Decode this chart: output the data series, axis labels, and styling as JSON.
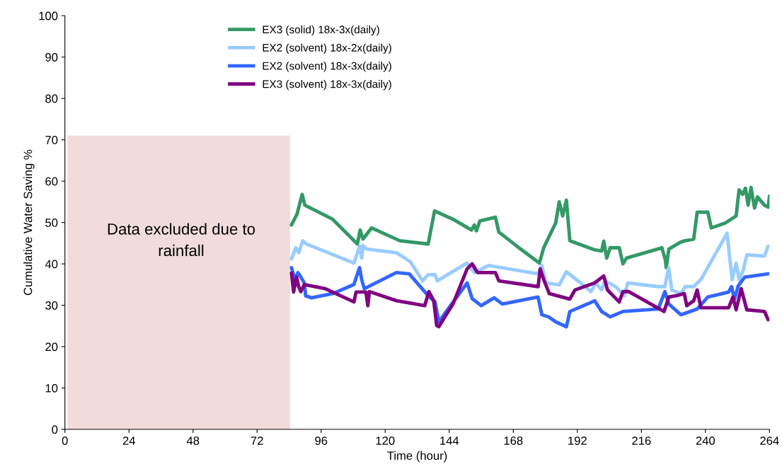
{
  "chart_data": {
    "type": "line",
    "xlabel": "Time (hour)",
    "ylabel": "Cumulative Water Saving %",
    "xlim": [
      0,
      264
    ],
    "xticks": [
      0,
      24,
      48,
      72,
      96,
      120,
      144,
      168,
      192,
      216,
      240,
      264
    ],
    "ylim": [
      0,
      100
    ],
    "yticks": [
      0,
      10,
      20,
      30,
      40,
      50,
      60,
      70,
      80,
      90,
      100
    ],
    "grid": false,
    "legend": "top",
    "marker": "none",
    "line_style": "solid",
    "annotations": [
      "Data excluded due to\nrainfall"
    ],
    "series": [
      {
        "type": "area",
        "color": "#f2dcdb",
        "x": [
          1,
          84.4
        ],
        "values": [
          71,
          71
        ]
      },
      {
        "name": "EX3 (solid) 18x-3x(daily)",
        "color": "#339966",
        "x": [
          84.9,
          87.0,
          88.9,
          89.9,
          100.3,
          109.6,
          110.6,
          111.7,
          114.9,
          125.5,
          136.1,
          138.5,
          145.4,
          152.3,
          153.4,
          154.2,
          155.5,
          161.3,
          162.6,
          169.3,
          177.8,
          179.4,
          182.0,
          183.9,
          185.2,
          186.5,
          187.9,
          189.2,
          198.5,
          201.1,
          201.9,
          203.0,
          204.3,
          207.7,
          209.1,
          210.4,
          223.7,
          225.0,
          225.3,
          226.3,
          230.8,
          232.4,
          235.6,
          236.9,
          240.9,
          242.2,
          247.5,
          251.5,
          252.6,
          253.9,
          255.0,
          256.0,
          257.1,
          258.4,
          259.5,
          262.1,
          263.5,
          264
        ],
        "values": [
          49.4,
          52.1,
          56.8,
          54.2,
          50.8,
          44.8,
          48.2,
          46.0,
          48.7,
          45.6,
          44.8,
          52.8,
          50.8,
          48.2,
          49.4,
          48.0,
          50.4,
          51.3,
          47.7,
          44.3,
          40.2,
          43.9,
          47.4,
          49.9,
          55.0,
          51.6,
          55.4,
          45.6,
          43.4,
          43.1,
          45.5,
          41.4,
          43.9,
          43.9,
          40.0,
          41.4,
          43.9,
          40.9,
          39.1,
          43.6,
          45.3,
          45.6,
          46.0,
          52.5,
          52.5,
          48.7,
          49.9,
          51.6,
          57.9,
          56.8,
          58.3,
          54.2,
          58.5,
          53.5,
          56.2,
          54.2,
          53.7,
          56.4
        ]
      },
      {
        "name": "EX2 (solvent) 18x-2x(daily)",
        "color": "#99ccff",
        "x": [
          84.9,
          86.5,
          87.6,
          89.1,
          90.5,
          108.3,
          110.4,
          111.2,
          111.7,
          113.0,
          124.2,
          129.5,
          134.0,
          136.1,
          138.7,
          139.5,
          150.7,
          153.4,
          158.7,
          177.3,
          178.7,
          180.3,
          185.2,
          187.9,
          193.2,
          197.1,
          199.0,
          201.1,
          202.4,
          206.4,
          209.6,
          210.9,
          222.3,
          224.8,
          226.2,
          227.4,
          230.8,
          232.4,
          235.6,
          238.3,
          248.1,
          250.0,
          251.5,
          252.6,
          254.2,
          255.5,
          262.1,
          263.5
        ],
        "values": [
          41.2,
          43.9,
          42.7,
          45.6,
          44.8,
          40.2,
          44.3,
          41.4,
          44.5,
          43.6,
          42.7,
          40.5,
          35.9,
          37.4,
          37.4,
          35.9,
          40.2,
          37.9,
          39.6,
          37.6,
          39.6,
          35.4,
          34.9,
          38.1,
          35.4,
          33.3,
          35.4,
          33.7,
          35.9,
          34.5,
          32.3,
          35.4,
          34.5,
          34.5,
          39.1,
          33.7,
          32.8,
          34.5,
          34.5,
          36.2,
          47.4,
          36.2,
          40.2,
          36.2,
          38.5,
          42.2,
          41.9,
          44.3
        ]
      },
      {
        "name": "EX2 (solvent) 18x-3x(daily)",
        "color": "#3366ff",
        "x": [
          84.9,
          86.2,
          87.3,
          88.4,
          89.7,
          90.2,
          92.3,
          100.3,
          108.3,
          109.1,
          110.4,
          111.2,
          112.2,
          124.2,
          129.0,
          136.1,
          138.7,
          140.1,
          150.7,
          152.6,
          156.0,
          160.8,
          163.9,
          177.3,
          178.7,
          181.2,
          183.9,
          187.9,
          189.2,
          195.8,
          198.5,
          201.1,
          204.3,
          209.1,
          222.3,
          224.8,
          226.3,
          230.8,
          234.3,
          236.9,
          240.9,
          248.7,
          249.8,
          250.9,
          252.3,
          254.7,
          263.5
        ],
        "values": [
          39.1,
          36.2,
          37.9,
          36.8,
          35.4,
          32.3,
          31.8,
          32.8,
          35.0,
          36.6,
          39.1,
          36.2,
          34.0,
          37.9,
          37.6,
          32.3,
          30.8,
          26.0,
          35.4,
          31.6,
          29.9,
          31.8,
          30.3,
          32.0,
          27.7,
          27.2,
          26.0,
          24.8,
          28.5,
          30.3,
          31.1,
          28.5,
          27.2,
          28.5,
          29.1,
          33.3,
          30.3,
          27.7,
          28.5,
          29.1,
          32.0,
          33.2,
          34.5,
          31.5,
          34.7,
          36.8,
          37.6
        ]
      },
      {
        "name": "EX3 (solvent) 18x-3x(daily)",
        "color": "#800080",
        "x": [
          84.9,
          85.7,
          86.8,
          87.6,
          88.4,
          89.7,
          97.6,
          108.3,
          109.1,
          112.8,
          113.5,
          114.1,
          124.2,
          134.8,
          136.4,
          138.2,
          139.3,
          140.1,
          145.4,
          150.7,
          152.6,
          154.6,
          161.3,
          162.6,
          177.3,
          178.1,
          179.4,
          181.5,
          189.2,
          191.1,
          198.5,
          201.9,
          203.3,
          207.7,
          209.1,
          211.3,
          224.5,
          226.3,
          229.0,
          232.1,
          233.0,
          235.6,
          236.9,
          238.3,
          248.7,
          250.3,
          251.5,
          253.4,
          255.5,
          262.1,
          263.5
        ],
        "values": [
          37.8,
          33.2,
          36.8,
          34.5,
          33.3,
          35.0,
          34.0,
          30.8,
          33.2,
          33.2,
          29.9,
          33.3,
          31.1,
          29.9,
          33.3,
          31.1,
          25.1,
          24.8,
          30.3,
          38.8,
          40.0,
          37.9,
          37.9,
          35.9,
          34.5,
          38.8,
          36.2,
          32.8,
          31.5,
          33.7,
          35.4,
          37.1,
          33.7,
          30.8,
          33.3,
          33.3,
          28.5,
          32.0,
          32.3,
          32.8,
          29.9,
          31.1,
          33.7,
          29.4,
          29.4,
          32.0,
          28.9,
          34.0,
          28.9,
          28.5,
          26.5
        ]
      }
    ]
  }
}
